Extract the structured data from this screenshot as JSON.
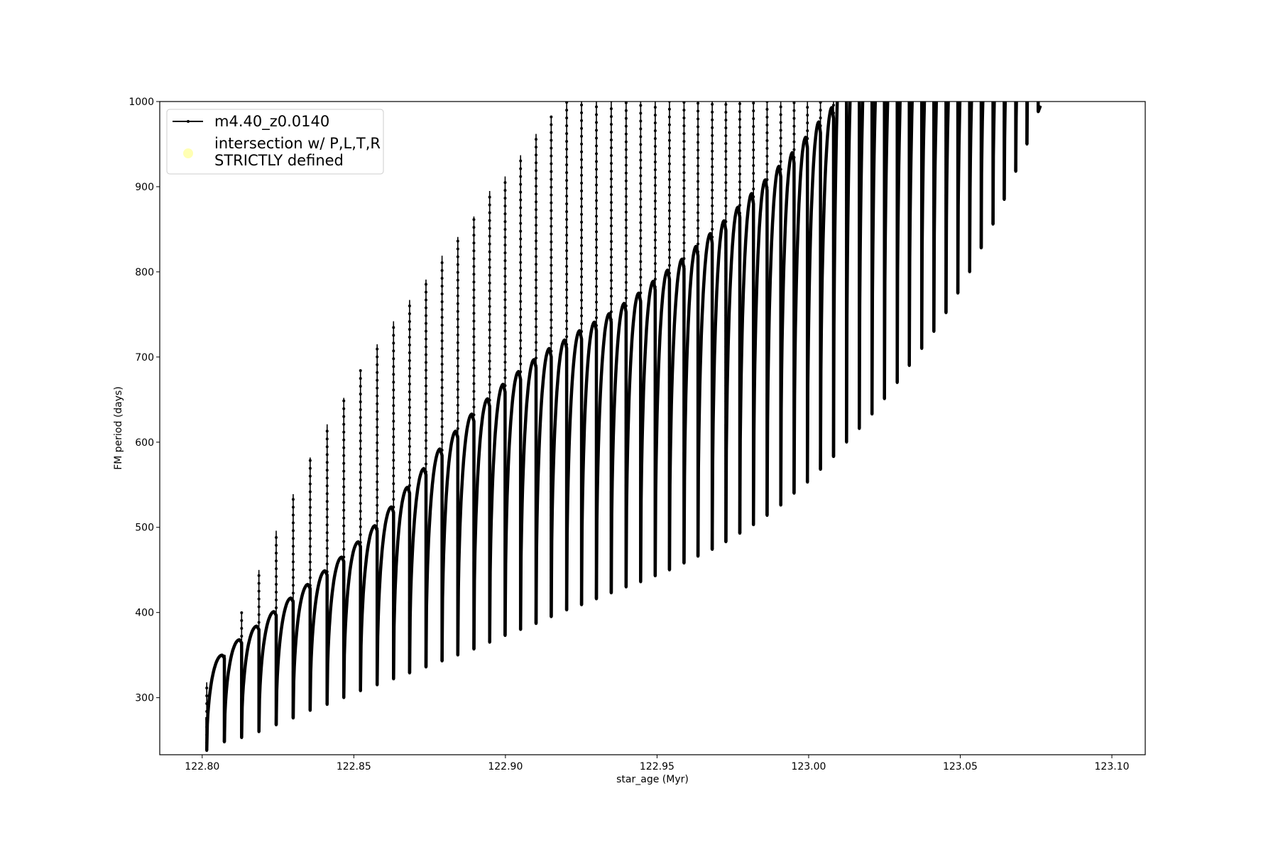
{
  "chart_data": {
    "type": "line",
    "xlabel": "star_age (Myr)",
    "ylabel": "FM period (days)",
    "xlim": [
      122.786,
      123.111
    ],
    "ylim": [
      233,
      1000
    ],
    "xticks": [
      "122.80",
      "122.85",
      "122.90",
      "122.95",
      "123.00",
      "123.05",
      "123.10"
    ],
    "yticks": [
      "300",
      "400",
      "500",
      "600",
      "700",
      "800",
      "900",
      "1000"
    ],
    "grid": false,
    "legend": {
      "placement": "top-left",
      "entries": [
        {
          "label": "m4.40_z0.0140",
          "marker": "line-dot",
          "color": "#000000"
        },
        {
          "label_line1": "intersection w/ P,L,T,R",
          "label_line2": "STRICTLY defined",
          "marker": "circle",
          "color": "#ffffb3"
        }
      ]
    },
    "series": [
      {
        "name": "m4.40_z0.0140",
        "color": "#000000",
        "cycle_fields": [
          "age_start",
          "period_min",
          "arch_peak",
          "spike_top"
        ],
        "cycles": [
          [
            122.8015,
            238,
            350,
            318
          ],
          [
            122.8073,
            248,
            368,
            350
          ],
          [
            122.813,
            253,
            384,
            400
          ],
          [
            122.8187,
            260,
            401,
            450
          ],
          [
            122.8244,
            268,
            417,
            496
          ],
          [
            122.83,
            276,
            433,
            539
          ],
          [
            122.8356,
            285,
            449,
            582
          ],
          [
            122.8412,
            292,
            465,
            621
          ],
          [
            122.8467,
            300,
            483,
            652
          ],
          [
            122.8522,
            308,
            502,
            684
          ],
          [
            122.8577,
            315,
            524,
            715
          ],
          [
            122.8631,
            322,
            547,
            742
          ],
          [
            122.8684,
            329,
            569,
            767
          ],
          [
            122.8738,
            336,
            592,
            791
          ],
          [
            122.8791,
            343,
            613,
            819
          ],
          [
            122.8843,
            350,
            633,
            841
          ],
          [
            122.8896,
            357,
            651,
            865
          ],
          [
            122.8948,
            365,
            668,
            895
          ],
          [
            122.8999,
            373,
            683,
            912
          ],
          [
            122.905,
            380,
            697,
            937
          ],
          [
            122.9101,
            387,
            710,
            962
          ],
          [
            122.9151,
            395,
            720,
            983
          ],
          [
            122.9202,
            403,
            731,
            null
          ],
          [
            122.9251,
            409,
            741,
            null
          ],
          [
            122.93,
            416,
            751,
            null
          ],
          [
            122.9349,
            423,
            763,
            null
          ],
          [
            122.9398,
            430,
            775,
            null
          ],
          [
            122.9446,
            436,
            789,
            null
          ],
          [
            122.9494,
            443,
            802,
            null
          ],
          [
            122.9541,
            450,
            815,
            null
          ],
          [
            122.9589,
            458,
            830,
            null
          ],
          [
            122.9635,
            466,
            845,
            null
          ],
          [
            122.9682,
            474,
            860,
            null
          ],
          [
            122.9727,
            483,
            876,
            null
          ],
          [
            122.9773,
            493,
            892,
            null
          ],
          [
            122.9818,
            503,
            908,
            null
          ],
          [
            122.9863,
            514,
            924,
            null
          ],
          [
            122.9908,
            526,
            940,
            null
          ],
          [
            122.9952,
            540,
            958,
            null
          ],
          [
            122.9996,
            553,
            976,
            null
          ],
          [
            123.0039,
            568,
            993,
            null
          ],
          [
            123.0082,
            583,
            null,
            null
          ],
          [
            123.0125,
            600,
            null,
            null
          ],
          [
            123.0167,
            616,
            null,
            null
          ],
          [
            123.0209,
            633,
            null,
            null
          ],
          [
            123.025,
            651,
            null,
            null
          ],
          [
            123.0292,
            670,
            null,
            null
          ],
          [
            123.0332,
            690,
            null,
            null
          ],
          [
            123.0373,
            710,
            null,
            null
          ],
          [
            123.0413,
            730,
            null,
            null
          ],
          [
            123.0453,
            752,
            null,
            null
          ],
          [
            123.0492,
            775,
            null,
            null
          ],
          [
            123.0531,
            800,
            null,
            null
          ],
          [
            123.0569,
            828,
            null,
            null
          ],
          [
            123.0608,
            856,
            null,
            null
          ],
          [
            123.0645,
            885,
            null,
            null
          ],
          [
            123.0683,
            918,
            null,
            null
          ],
          [
            123.072,
            950,
            null,
            null
          ],
          [
            123.0757,
            988,
            null,
            null
          ]
        ]
      }
    ]
  }
}
